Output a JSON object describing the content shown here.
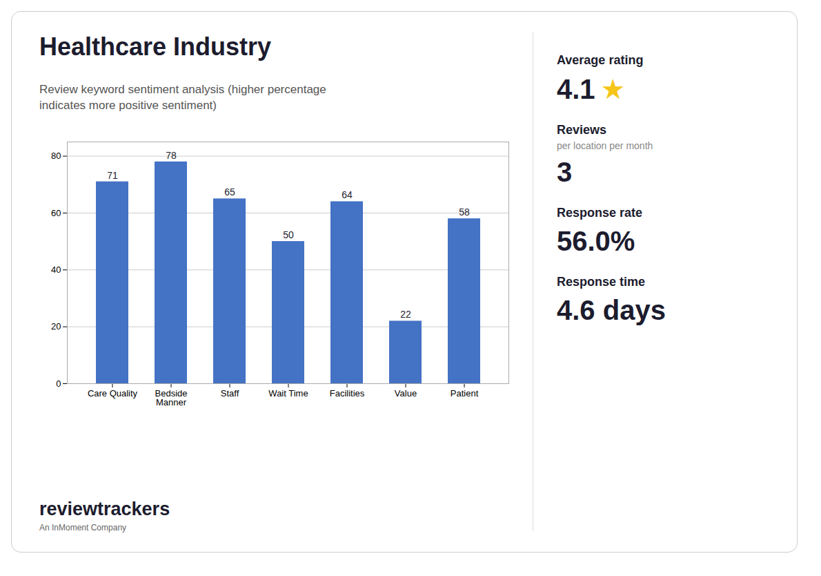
{
  "chart_data": {
    "type": "bar",
    "title": "Healthcare Industry",
    "subtitle": "Review keyword sentiment analysis (higher percentage\nindicates more positive sentiment)",
    "categories": [
      "Care Quality",
      "Bedside\nManner",
      "Staff",
      "Wait Time",
      "Facilities",
      "Value",
      "Patient"
    ],
    "values": [
      71,
      78,
      65,
      50,
      64,
      22,
      58
    ],
    "color": "#4472C4",
    "ylim": [
      0,
      85
    ],
    "yticks": [
      0,
      20,
      40,
      60,
      80
    ],
    "grid": true,
    "data_labels": true,
    "annotations": [
      "Average rating",
      "4.1",
      "★",
      "Reviews",
      "per location per month",
      "3",
      "Response rate",
      "56.0%",
      "Response time",
      "4.6 days",
      "reviewtrackers",
      "An InMoment Company"
    ]
  }
}
